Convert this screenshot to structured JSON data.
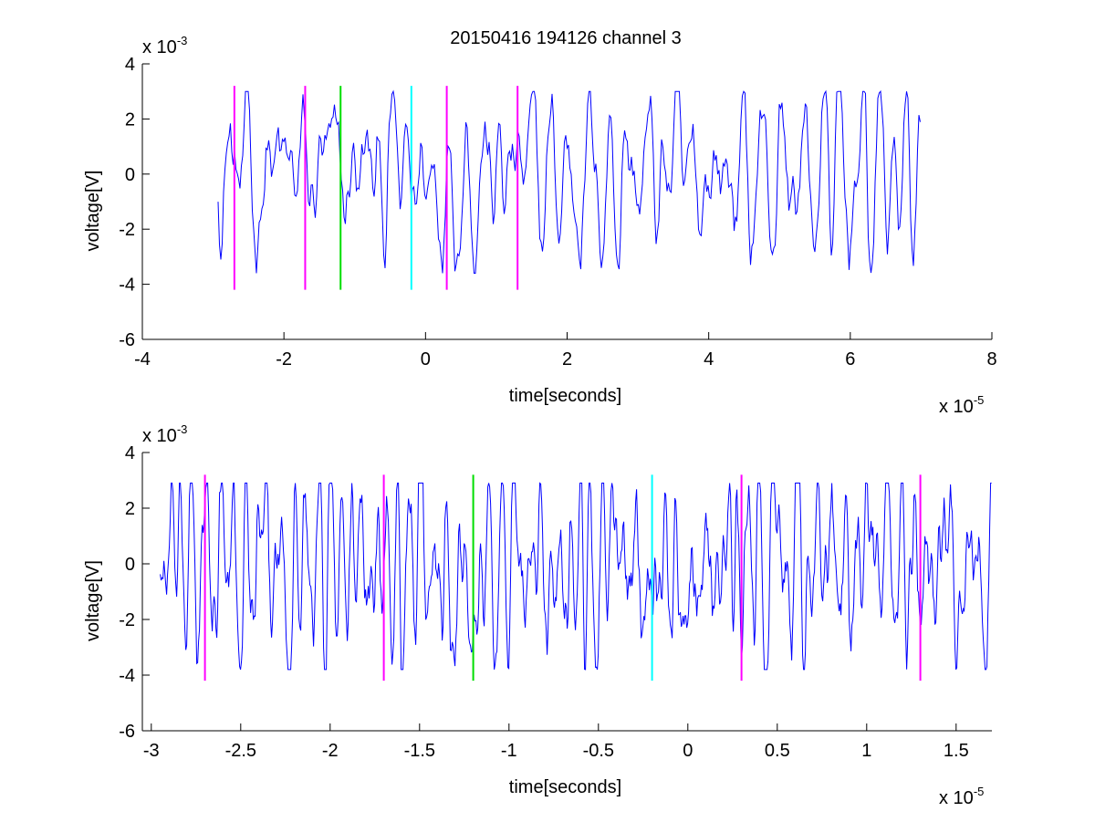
{
  "figure": {
    "title": "20150416 194126 channel 3"
  },
  "chart_data": [
    {
      "type": "line",
      "title": "20150416 194126 channel 3",
      "xlabel": "time[seconds]",
      "ylabel": "voltage[V]",
      "x_exponent_label": "x 10",
      "x_exponent": "-5",
      "y_exponent_label": "x 10",
      "y_exponent": "-3",
      "xlim": [
        -4,
        8
      ],
      "ylim": [
        -6,
        4
      ],
      "xticks": [
        -4,
        -2,
        0,
        2,
        4,
        6,
        8
      ],
      "xtick_labels": [
        "-4",
        "-2",
        "0",
        "2",
        "4",
        "6",
        "8"
      ],
      "yticks": [
        -6,
        -4,
        -2,
        0,
        2,
        4
      ],
      "ytick_labels": [
        "-6",
        "-4",
        "-2",
        "0",
        "2",
        "4"
      ],
      "grid": false,
      "signal": {
        "name": "",
        "color": "#0000ff",
        "x_range": [
          -2.93,
          7.0
        ],
        "approx_amplitude": 2.5,
        "min": -3.6,
        "max": 3.0
      },
      "markers": [
        {
          "x": -2.7,
          "color": "#ff00ff",
          "y": [
            -4.2,
            3.2
          ]
        },
        {
          "x": -1.7,
          "color": "#ff00ff",
          "y": [
            -4.2,
            3.2
          ]
        },
        {
          "x": -1.2,
          "color": "#00dd00",
          "y": [
            -4.2,
            3.2
          ]
        },
        {
          "x": -0.2,
          "color": "#00ffff",
          "y": [
            -4.2,
            3.2
          ]
        },
        {
          "x": 0.3,
          "color": "#ff00ff",
          "y": [
            -4.2,
            3.2
          ]
        },
        {
          "x": 1.3,
          "color": "#ff00ff",
          "y": [
            -4.2,
            3.2
          ]
        }
      ]
    },
    {
      "type": "line",
      "title": "",
      "xlabel": "time[seconds]",
      "ylabel": "voltage[V]",
      "x_exponent_label": "x 10",
      "x_exponent": "-5",
      "y_exponent_label": "x 10",
      "y_exponent": "-3",
      "xlim": [
        -3.05,
        1.7
      ],
      "ylim": [
        -6,
        4
      ],
      "xticks": [
        -3,
        -2.5,
        -2,
        -1.5,
        -1,
        -0.5,
        0,
        0.5,
        1,
        1.5
      ],
      "xtick_labels": [
        "-3",
        "-2.5",
        "-2",
        "-1.5",
        "-1",
        "-0.5",
        "0",
        "0.5",
        "1",
        "1.5"
      ],
      "yticks": [
        -6,
        -4,
        -2,
        0,
        2,
        4
      ],
      "ytick_labels": [
        "-6",
        "-4",
        "-2",
        "0",
        "2",
        "4"
      ],
      "grid": false,
      "signal": {
        "name": "",
        "color": "#0000ff",
        "x_range": [
          -2.95,
          1.7
        ],
        "approx_amplitude": 2.5,
        "min": -3.8,
        "max": 2.9
      },
      "markers": [
        {
          "x": -2.7,
          "color": "#ff00ff",
          "y": [
            -4.2,
            3.2
          ]
        },
        {
          "x": -1.7,
          "color": "#ff00ff",
          "y": [
            -4.2,
            3.2
          ]
        },
        {
          "x": -1.2,
          "color": "#00dd00",
          "y": [
            -4.2,
            3.2
          ]
        },
        {
          "x": -0.2,
          "color": "#00ffff",
          "y": [
            -4.2,
            3.2
          ]
        },
        {
          "x": 0.3,
          "color": "#ff00ff",
          "y": [
            -4.2,
            3.2
          ]
        },
        {
          "x": 1.3,
          "color": "#ff00ff",
          "y": [
            -4.2,
            3.2
          ]
        }
      ]
    }
  ]
}
